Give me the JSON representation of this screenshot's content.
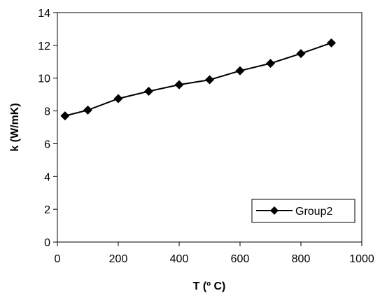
{
  "chart_data": {
    "type": "line",
    "title": "",
    "xlabel": "T (º C)",
    "ylabel": "k (W/mK)",
    "xlim": [
      0,
      1000
    ],
    "ylim": [
      0,
      14
    ],
    "xticks": [
      "0",
      "200",
      "400",
      "600",
      "800",
      "1000"
    ],
    "yticks": [
      "0",
      "2",
      "4",
      "6",
      "8",
      "10",
      "12",
      "14"
    ],
    "grid": false,
    "legend_position": "bottom-right",
    "series": [
      {
        "name": "Group2",
        "color": "#000000",
        "marker": "diamond",
        "x": [
          25,
          100,
          200,
          300,
          400,
          500,
          600,
          700,
          800,
          900
        ],
        "y": [
          7.7,
          8.05,
          8.75,
          9.2,
          9.6,
          9.9,
          10.45,
          10.9,
          11.5,
          12.15
        ]
      }
    ]
  }
}
